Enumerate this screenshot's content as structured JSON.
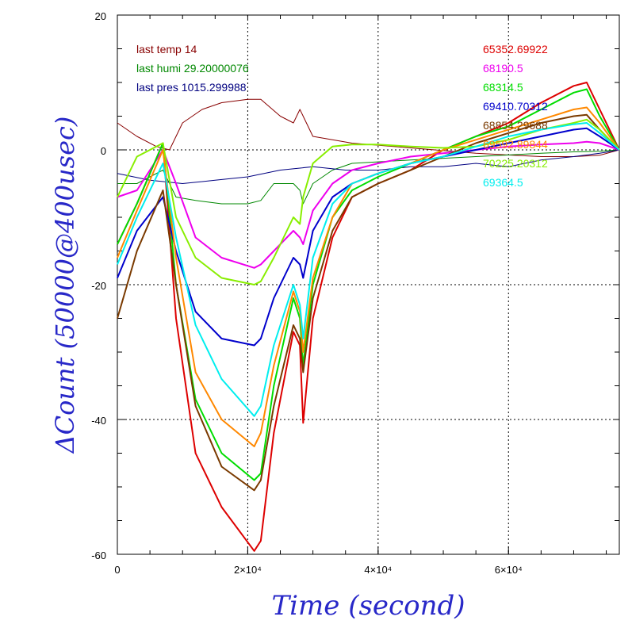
{
  "chart_data": {
    "type": "line",
    "title": "",
    "xlabel": "Time (second)",
    "ylabel": "ΔCount (50000@400usec)",
    "xlim": [
      0,
      77000
    ],
    "ylim": [
      -60,
      20
    ],
    "x_ticks": [
      {
        "value": 0,
        "label": "0"
      },
      {
        "value": 20000,
        "label": "2×10⁴"
      },
      {
        "value": 40000,
        "label": "4×10⁴"
      },
      {
        "value": 60000,
        "label": "6×10⁴"
      }
    ],
    "y_ticks": [
      {
        "value": 20,
        "label": "20"
      },
      {
        "value": 0,
        "label": "0"
      },
      {
        "value": -20,
        "label": "-20"
      },
      {
        "value": -40,
        "label": "-40"
      },
      {
        "value": -60,
        "label": "-60"
      }
    ],
    "grid": true,
    "annotations_left": [
      {
        "text": "last temp 14",
        "color": "#880000"
      },
      {
        "text": "last humi 29.20000076",
        "color": "#008800"
      },
      {
        "text": "last pres 1015.299988",
        "color": "#000080"
      }
    ],
    "series": [
      {
        "name": "65352.69922",
        "color": "#dd0000",
        "points": [
          [
            0,
            -14
          ],
          [
            3000,
            -8
          ],
          [
            7000,
            1
          ],
          [
            9000,
            -25
          ],
          [
            12000,
            -45
          ],
          [
            16000,
            -53
          ],
          [
            21000,
            -59.5
          ],
          [
            22000,
            -58
          ],
          [
            24000,
            -42
          ],
          [
            27000,
            -27
          ],
          [
            28000,
            -29
          ],
          [
            28500,
            -40.5
          ],
          [
            30000,
            -25
          ],
          [
            33000,
            -13
          ],
          [
            36000,
            -7
          ],
          [
            40000,
            -5
          ],
          [
            45000,
            -3
          ],
          [
            50000,
            0
          ],
          [
            55000,
            2
          ],
          [
            60000,
            4
          ],
          [
            65000,
            7
          ],
          [
            70000,
            9.5
          ],
          [
            72000,
            10
          ],
          [
            74000,
            6
          ],
          [
            77000,
            0
          ]
        ]
      },
      {
        "name": "68190.5",
        "color": "#ee00ee",
        "points": [
          [
            0,
            -7
          ],
          [
            3000,
            -6
          ],
          [
            7000,
            0
          ],
          [
            9000,
            -5
          ],
          [
            12000,
            -13
          ],
          [
            16000,
            -16
          ],
          [
            21000,
            -17.5
          ],
          [
            22000,
            -17
          ],
          [
            24000,
            -15
          ],
          [
            27000,
            -12
          ],
          [
            28000,
            -13
          ],
          [
            28500,
            -14
          ],
          [
            30000,
            -9
          ],
          [
            33000,
            -5
          ],
          [
            36000,
            -3
          ],
          [
            40000,
            -2
          ],
          [
            45000,
            -1
          ],
          [
            50000,
            -0.5
          ],
          [
            55000,
            0
          ],
          [
            60000,
            0.5
          ],
          [
            65000,
            0.8
          ],
          [
            70000,
            1
          ],
          [
            72000,
            1.2
          ],
          [
            74000,
            1
          ],
          [
            77000,
            0
          ]
        ]
      },
      {
        "name": "68314.5",
        "color": "#00dd00",
        "points": [
          [
            0,
            -14
          ],
          [
            3000,
            -8
          ],
          [
            7000,
            1
          ],
          [
            9000,
            -20
          ],
          [
            12000,
            -37
          ],
          [
            16000,
            -45
          ],
          [
            21000,
            -49
          ],
          [
            22000,
            -48
          ],
          [
            24000,
            -35
          ],
          [
            27000,
            -22
          ],
          [
            28000,
            -25
          ],
          [
            28500,
            -32
          ],
          [
            30000,
            -20
          ],
          [
            33000,
            -10
          ],
          [
            36000,
            -6
          ],
          [
            40000,
            -4
          ],
          [
            45000,
            -2
          ],
          [
            50000,
            0
          ],
          [
            55000,
            2
          ],
          [
            60000,
            3.5
          ],
          [
            65000,
            6
          ],
          [
            70000,
            8.5
          ],
          [
            72000,
            9
          ],
          [
            74000,
            5
          ],
          [
            77000,
            0
          ]
        ]
      },
      {
        "name": "69410.70312",
        "color": "#0000cc",
        "points": [
          [
            0,
            -19
          ],
          [
            3000,
            -12
          ],
          [
            7000,
            -7
          ],
          [
            9000,
            -15
          ],
          [
            12000,
            -24
          ],
          [
            16000,
            -28
          ],
          [
            21000,
            -29
          ],
          [
            22000,
            -28
          ],
          [
            24000,
            -22
          ],
          [
            27000,
            -16
          ],
          [
            28000,
            -17
          ],
          [
            28500,
            -19
          ],
          [
            30000,
            -12
          ],
          [
            33000,
            -7
          ],
          [
            36000,
            -5
          ],
          [
            40000,
            -3.5
          ],
          [
            45000,
            -2
          ],
          [
            50000,
            -1
          ],
          [
            55000,
            0
          ],
          [
            60000,
            1
          ],
          [
            65000,
            2
          ],
          [
            70000,
            3
          ],
          [
            72000,
            3.2
          ],
          [
            74000,
            2
          ],
          [
            77000,
            0
          ]
        ]
      },
      {
        "name": "68854.29688",
        "color": "#7a3a00",
        "points": [
          [
            0,
            -25
          ],
          [
            3000,
            -15
          ],
          [
            7000,
            -6
          ],
          [
            9000,
            -20
          ],
          [
            12000,
            -38
          ],
          [
            16000,
            -47
          ],
          [
            21000,
            -50.5
          ],
          [
            22000,
            -49
          ],
          [
            24000,
            -38
          ],
          [
            27000,
            -26
          ],
          [
            28000,
            -28
          ],
          [
            28500,
            -33
          ],
          [
            30000,
            -22
          ],
          [
            33000,
            -12
          ],
          [
            36000,
            -7
          ],
          [
            40000,
            -5
          ],
          [
            45000,
            -3
          ],
          [
            50000,
            -1
          ],
          [
            55000,
            1
          ],
          [
            60000,
            2.5
          ],
          [
            65000,
            4
          ],
          [
            70000,
            5
          ],
          [
            72000,
            5.2
          ],
          [
            74000,
            3
          ],
          [
            77000,
            0
          ]
        ]
      },
      {
        "name": "69592.89844",
        "color": "#ff8800",
        "points": [
          [
            0,
            -16
          ],
          [
            3000,
            -9
          ],
          [
            7000,
            0
          ],
          [
            9000,
            -16
          ],
          [
            12000,
            -33
          ],
          [
            16000,
            -40
          ],
          [
            21000,
            -44
          ],
          [
            22000,
            -42
          ],
          [
            24000,
            -32
          ],
          [
            27000,
            -21
          ],
          [
            28000,
            -24
          ],
          [
            28500,
            -30
          ],
          [
            30000,
            -19
          ],
          [
            33000,
            -10
          ],
          [
            36000,
            -5
          ],
          [
            40000,
            -3.5
          ],
          [
            45000,
            -2
          ],
          [
            50000,
            0
          ],
          [
            55000,
            1.5
          ],
          [
            60000,
            3
          ],
          [
            65000,
            4.5
          ],
          [
            70000,
            6
          ],
          [
            72000,
            6.3
          ],
          [
            74000,
            4
          ],
          [
            77000,
            0
          ]
        ]
      },
      {
        "name": "70225.20312",
        "color": "#88ee00",
        "points": [
          [
            0,
            -7
          ],
          [
            3000,
            -1
          ],
          [
            7000,
            1
          ],
          [
            9000,
            -10
          ],
          [
            12000,
            -16
          ],
          [
            16000,
            -19
          ],
          [
            21000,
            -20
          ],
          [
            22000,
            -19.5
          ],
          [
            24000,
            -16
          ],
          [
            27000,
            -10
          ],
          [
            28000,
            -11
          ],
          [
            28500,
            -7
          ],
          [
            30000,
            -2
          ],
          [
            33000,
            0.5
          ],
          [
            36000,
            0.8
          ],
          [
            40000,
            0.8
          ],
          [
            45000,
            0.5
          ],
          [
            50000,
            0.3
          ],
          [
            55000,
            0.5
          ],
          [
            60000,
            1.5
          ],
          [
            65000,
            3
          ],
          [
            70000,
            4
          ],
          [
            72000,
            4.5
          ],
          [
            74000,
            3
          ],
          [
            77000,
            0
          ]
        ]
      },
      {
        "name": "69364.5",
        "color": "#00eeee",
        "points": [
          [
            0,
            -17
          ],
          [
            3000,
            -10
          ],
          [
            7000,
            -2
          ],
          [
            9000,
            -13
          ],
          [
            12000,
            -26
          ],
          [
            16000,
            -34
          ],
          [
            21000,
            -39.5
          ],
          [
            22000,
            -38
          ],
          [
            24000,
            -29
          ],
          [
            27000,
            -20
          ],
          [
            28000,
            -23
          ],
          [
            28500,
            -28
          ],
          [
            30000,
            -16
          ],
          [
            33000,
            -8
          ],
          [
            36000,
            -5
          ],
          [
            40000,
            -3.5
          ],
          [
            45000,
            -2
          ],
          [
            50000,
            -1
          ],
          [
            55000,
            0.5
          ],
          [
            60000,
            2
          ],
          [
            65000,
            3
          ],
          [
            70000,
            3.8
          ],
          [
            72000,
            4
          ],
          [
            74000,
            2.5
          ],
          [
            77000,
            0
          ]
        ]
      }
    ],
    "environment_traces": [
      {
        "name": "temp",
        "color": "#880000",
        "points": [
          [
            0,
            4
          ],
          [
            3000,
            2
          ],
          [
            6000,
            0.5
          ],
          [
            8000,
            0
          ],
          [
            10000,
            4
          ],
          [
            13000,
            6
          ],
          [
            16000,
            7
          ],
          [
            20000,
            7.5
          ],
          [
            22000,
            7.5
          ],
          [
            25000,
            5
          ],
          [
            27000,
            4
          ],
          [
            28000,
            6
          ],
          [
            29000,
            4
          ],
          [
            30000,
            2
          ],
          [
            33000,
            1.5
          ],
          [
            36000,
            1
          ],
          [
            45000,
            0.3
          ],
          [
            55000,
            -0.5
          ],
          [
            65000,
            -1
          ],
          [
            70000,
            -1
          ],
          [
            74000,
            -0.8
          ],
          [
            77000,
            0
          ]
        ]
      },
      {
        "name": "humi",
        "color": "#008800",
        "points": [
          [
            0,
            -5
          ],
          [
            3000,
            -5
          ],
          [
            7000,
            -3
          ],
          [
            9000,
            -7
          ],
          [
            12000,
            -7.5
          ],
          [
            16000,
            -8
          ],
          [
            20000,
            -8
          ],
          [
            22000,
            -7.5
          ],
          [
            24000,
            -5
          ],
          [
            27000,
            -5
          ],
          [
            28000,
            -6
          ],
          [
            28500,
            -8
          ],
          [
            30000,
            -5
          ],
          [
            33000,
            -3
          ],
          [
            36000,
            -2
          ],
          [
            45000,
            -1.5
          ],
          [
            55000,
            -1
          ],
          [
            65000,
            -0.5
          ],
          [
            70000,
            -0.3
          ],
          [
            74000,
            -0.2
          ],
          [
            77000,
            0
          ]
        ]
      },
      {
        "name": "pres",
        "color": "#000080",
        "points": [
          [
            0,
            -3.5
          ],
          [
            5000,
            -4.5
          ],
          [
            10000,
            -5
          ],
          [
            15000,
            -4.5
          ],
          [
            20000,
            -4
          ],
          [
            25000,
            -3
          ],
          [
            30000,
            -2.5
          ],
          [
            35000,
            -3
          ],
          [
            40000,
            -3
          ],
          [
            45000,
            -2.5
          ],
          [
            50000,
            -2.5
          ],
          [
            55000,
            -2
          ],
          [
            60000,
            -2.5
          ],
          [
            65000,
            -1.5
          ],
          [
            70000,
            -1
          ],
          [
            74000,
            -0.5
          ],
          [
            77000,
            0
          ]
        ]
      }
    ]
  }
}
